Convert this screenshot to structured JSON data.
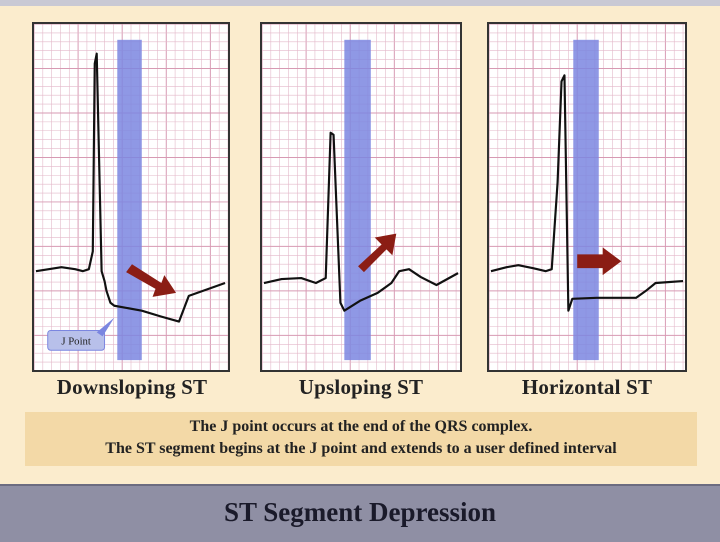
{
  "panels": [
    {
      "id": "downsloping",
      "label": "Downsloping ST",
      "callout": "J Point"
    },
    {
      "id": "upsloping",
      "label": "Upsloping ST"
    },
    {
      "id": "horizontal",
      "label": "Horizontal ST"
    }
  ],
  "notes": [
    "The J point occurs at the end of the QRS complex.",
    "The ST segment begins at the J point and extends to a user defined interval"
  ],
  "footer": {
    "title": "ST Segment Depression"
  },
  "colors": {
    "grid": "#e3b8c9",
    "grid_major": "#d79ab3",
    "interval_band": "#7b86e0",
    "trace": "#111111",
    "arrow": "#8b1d14",
    "callout_bg": "#b8c0ea"
  }
}
